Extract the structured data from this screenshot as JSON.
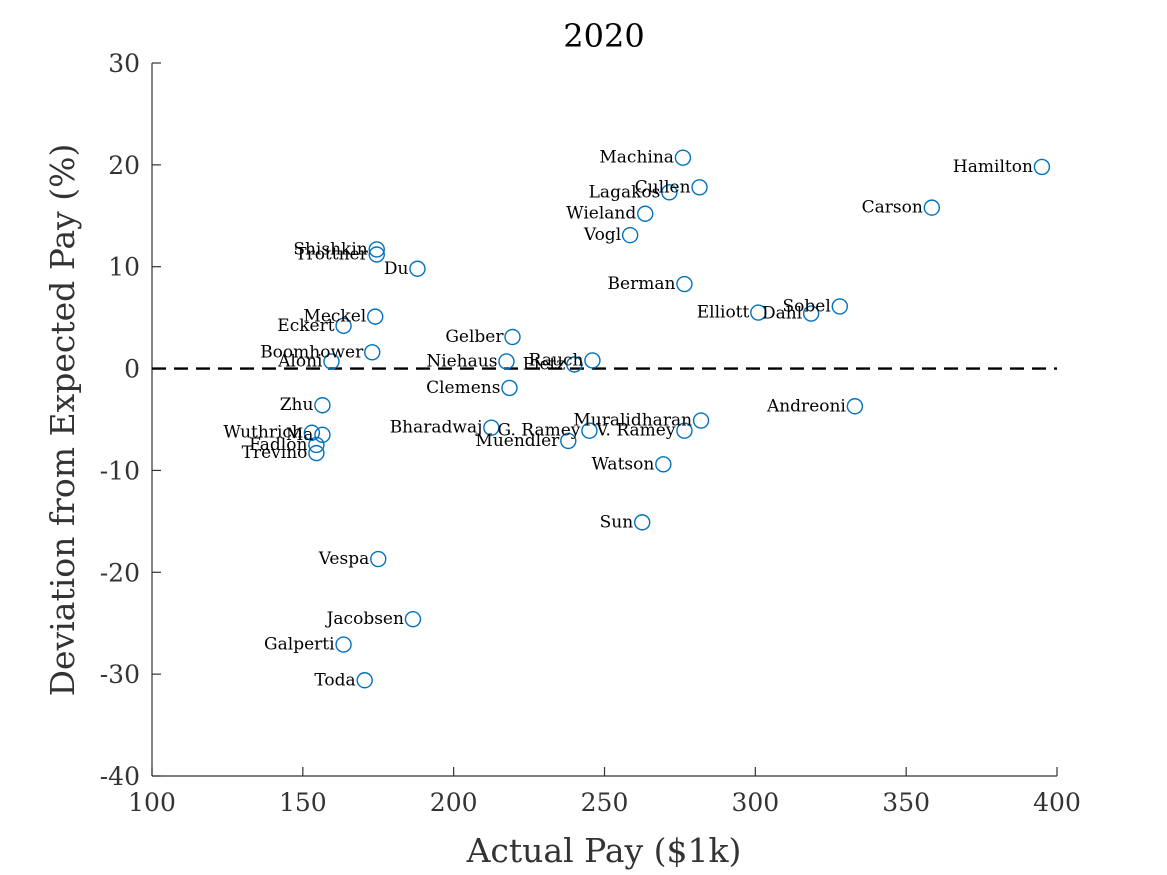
{
  "chart_data": {
    "type": "scatter",
    "title": "2020",
    "xlabel": "Actual Pay ($1k)",
    "ylabel": "Deviation from Expected Pay (%)",
    "xlim": [
      100,
      400
    ],
    "ylim": [
      -40,
      30
    ],
    "xticks": [
      100,
      150,
      200,
      250,
      300,
      350,
      400
    ],
    "yticks": [
      -40,
      -30,
      -20,
      -10,
      0,
      10,
      20,
      30
    ],
    "reference_line": {
      "y": 0,
      "style": "dashed"
    },
    "marker_color": "#0072BD",
    "grid": false,
    "points": [
      {
        "label": "Hamilton",
        "x": 395,
        "y": 19.8
      },
      {
        "label": "Carson",
        "x": 358.5,
        "y": 15.8
      },
      {
        "label": "Machina",
        "x": 276,
        "y": 20.7
      },
      {
        "label": "Cullen",
        "x": 281.5,
        "y": 17.8
      },
      {
        "label": "Lagakos",
        "x": 271.5,
        "y": 17.3
      },
      {
        "label": "Wieland",
        "x": 263.5,
        "y": 15.2
      },
      {
        "label": "Vogl",
        "x": 258.5,
        "y": 13.1
      },
      {
        "label": "Berman",
        "x": 276.5,
        "y": 8.3
      },
      {
        "label": "Sobel",
        "x": 328,
        "y": 6.1
      },
      {
        "label": "Dahl",
        "x": 318.5,
        "y": 5.4
      },
      {
        "label": "Elliott",
        "x": 301,
        "y": 5.5
      },
      {
        "label": "Shishkin",
        "x": 174.5,
        "y": 11.7
      },
      {
        "label": "Trottner",
        "x": 174.5,
        "y": 11.2
      },
      {
        "label": "Du",
        "x": 188,
        "y": 9.8
      },
      {
        "label": "Meckel",
        "x": 174,
        "y": 5.1
      },
      {
        "label": "Eckert",
        "x": 163.5,
        "y": 4.2
      },
      {
        "label": "Gelber",
        "x": 219.5,
        "y": 3.1
      },
      {
        "label": "Boomhower",
        "x": 173,
        "y": 1.6
      },
      {
        "label": "Aloni",
        "x": 159.5,
        "y": 0.7
      },
      {
        "label": "Niehaus",
        "x": 217.5,
        "y": 0.7
      },
      {
        "label": "Rauch",
        "x": 246,
        "y": 0.8
      },
      {
        "label": "Pietz",
        "x": 240,
        "y": 0.4
      },
      {
        "label": "Clemens",
        "x": 218.5,
        "y": -1.9
      },
      {
        "label": "Zhu",
        "x": 156.5,
        "y": -3.6
      },
      {
        "label": "Andreoni",
        "x": 333,
        "y": -3.7
      },
      {
        "label": "Muralidharan",
        "x": 282,
        "y": -5.1
      },
      {
        "label": "V. Ramey",
        "x": 276.5,
        "y": -6.1
      },
      {
        "label": "G. Ramey",
        "x": 245,
        "y": -6.1
      },
      {
        "label": "Bharadwaj",
        "x": 212.5,
        "y": -5.8
      },
      {
        "label": "Muendler",
        "x": 238,
        "y": -7.1
      },
      {
        "label": "Ma",
        "x": 156.5,
        "y": -6.5
      },
      {
        "label": "Wuthrich",
        "x": 153,
        "y": -6.3
      },
      {
        "label": "Fadlon",
        "x": 154.5,
        "y": -7.5
      },
      {
        "label": "Trevino",
        "x": 154.5,
        "y": -8.3
      },
      {
        "label": "Watson",
        "x": 269.5,
        "y": -9.4
      },
      {
        "label": "Sun",
        "x": 262.5,
        "y": -15.1
      },
      {
        "label": "Vespa",
        "x": 175,
        "y": -18.7
      },
      {
        "label": "Jacobsen",
        "x": 186.5,
        "y": -24.6
      },
      {
        "label": "Galperti",
        "x": 163.5,
        "y": -27.1
      },
      {
        "label": "Toda",
        "x": 170.5,
        "y": -30.6
      }
    ]
  }
}
